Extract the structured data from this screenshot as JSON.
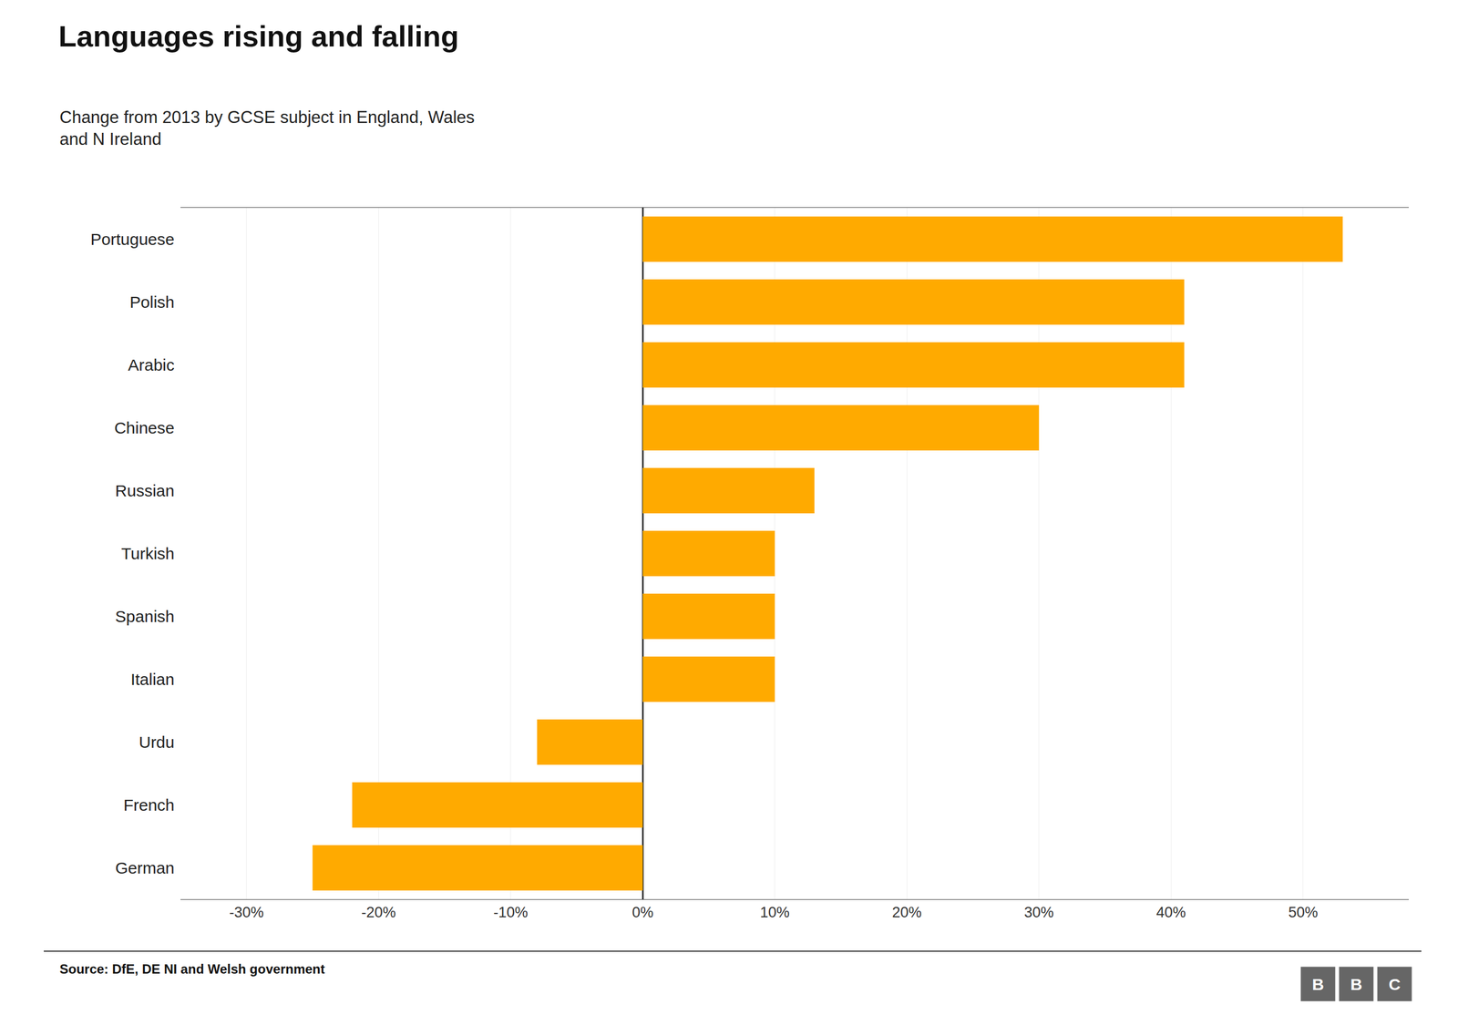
{
  "chart_data": {
    "type": "bar",
    "orientation": "horizontal",
    "title": "Languages rising and falling",
    "subtitle": "Change from 2013 by GCSE subject in England, Wales\nand N Ireland",
    "source": "Source: DfE, DE NI and Welsh government",
    "annotations": [
      "BBC"
    ],
    "categories": [
      "Portuguese",
      "Polish",
      "Arabic",
      "Chinese",
      "Russian",
      "Turkish",
      "Spanish",
      "Italian",
      "Urdu",
      "French",
      "German"
    ],
    "values": [
      53,
      41,
      41,
      30,
      13,
      10,
      10,
      10,
      -8,
      -22,
      -25
    ],
    "color": "#FFAA00",
    "xlim": [
      -35,
      58
    ],
    "xticks": [
      {
        "value": -30,
        "label": "-30%"
      },
      {
        "value": -20,
        "label": "-20%"
      },
      {
        "value": -10,
        "label": "-10%"
      },
      {
        "value": 0,
        "label": "0%"
      },
      {
        "value": 10,
        "label": "10%"
      },
      {
        "value": 20,
        "label": "20%"
      },
      {
        "value": 30,
        "label": "30%"
      },
      {
        "value": 40,
        "label": "40%"
      },
      {
        "value": 50,
        "label": "50%"
      }
    ],
    "grid": true
  }
}
